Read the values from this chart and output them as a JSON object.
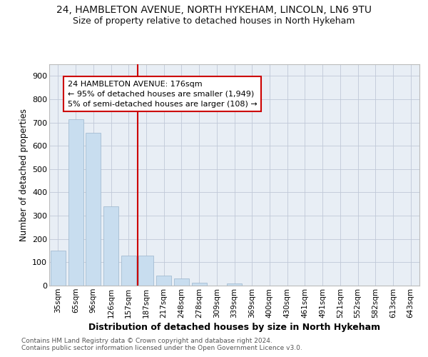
{
  "title1": "24, HAMBLETON AVENUE, NORTH HYKEHAM, LINCOLN, LN6 9TU",
  "title2": "Size of property relative to detached houses in North Hykeham",
  "xlabel": "Distribution of detached houses by size in North Hykeham",
  "ylabel": "Number of detached properties",
  "categories": [
    "35sqm",
    "65sqm",
    "96sqm",
    "126sqm",
    "157sqm",
    "187sqm",
    "217sqm",
    "248sqm",
    "278sqm",
    "309sqm",
    "339sqm",
    "369sqm",
    "400sqm",
    "430sqm",
    "461sqm",
    "491sqm",
    "521sqm",
    "552sqm",
    "582sqm",
    "613sqm",
    "643sqm"
  ],
  "values": [
    150,
    715,
    655,
    340,
    130,
    130,
    42,
    30,
    12,
    0,
    8,
    0,
    0,
    0,
    0,
    0,
    0,
    0,
    0,
    0,
    0
  ],
  "bar_color": "#c8ddef",
  "bar_edgecolor": "#9ab5cc",
  "vline_x": 5.0,
  "vline_color": "#cc0000",
  "annotation_line1": "24 HAMBLETON AVENUE: 176sqm",
  "annotation_line2": "← 95% of detached houses are smaller (1,949)",
  "annotation_line3": "5% of semi-detached houses are larger (108) →",
  "annotation_box_facecolor": "#ffffff",
  "annotation_box_edgecolor": "#cc0000",
  "ylim": [
    0,
    950
  ],
  "yticks": [
    0,
    100,
    200,
    300,
    400,
    500,
    600,
    700,
    800,
    900
  ],
  "plot_bg": "#e8eef5",
  "grid_color": "#c0c8d8",
  "footer_line1": "Contains HM Land Registry data © Crown copyright and database right 2024.",
  "footer_line2": "Contains public sector information licensed under the Open Government Licence v3.0.",
  "title1_fontsize": 10,
  "title2_fontsize": 9,
  "tick_fontsize": 7.5,
  "ylabel_fontsize": 8.5,
  "xlabel_fontsize": 9,
  "ann_fontsize": 8
}
